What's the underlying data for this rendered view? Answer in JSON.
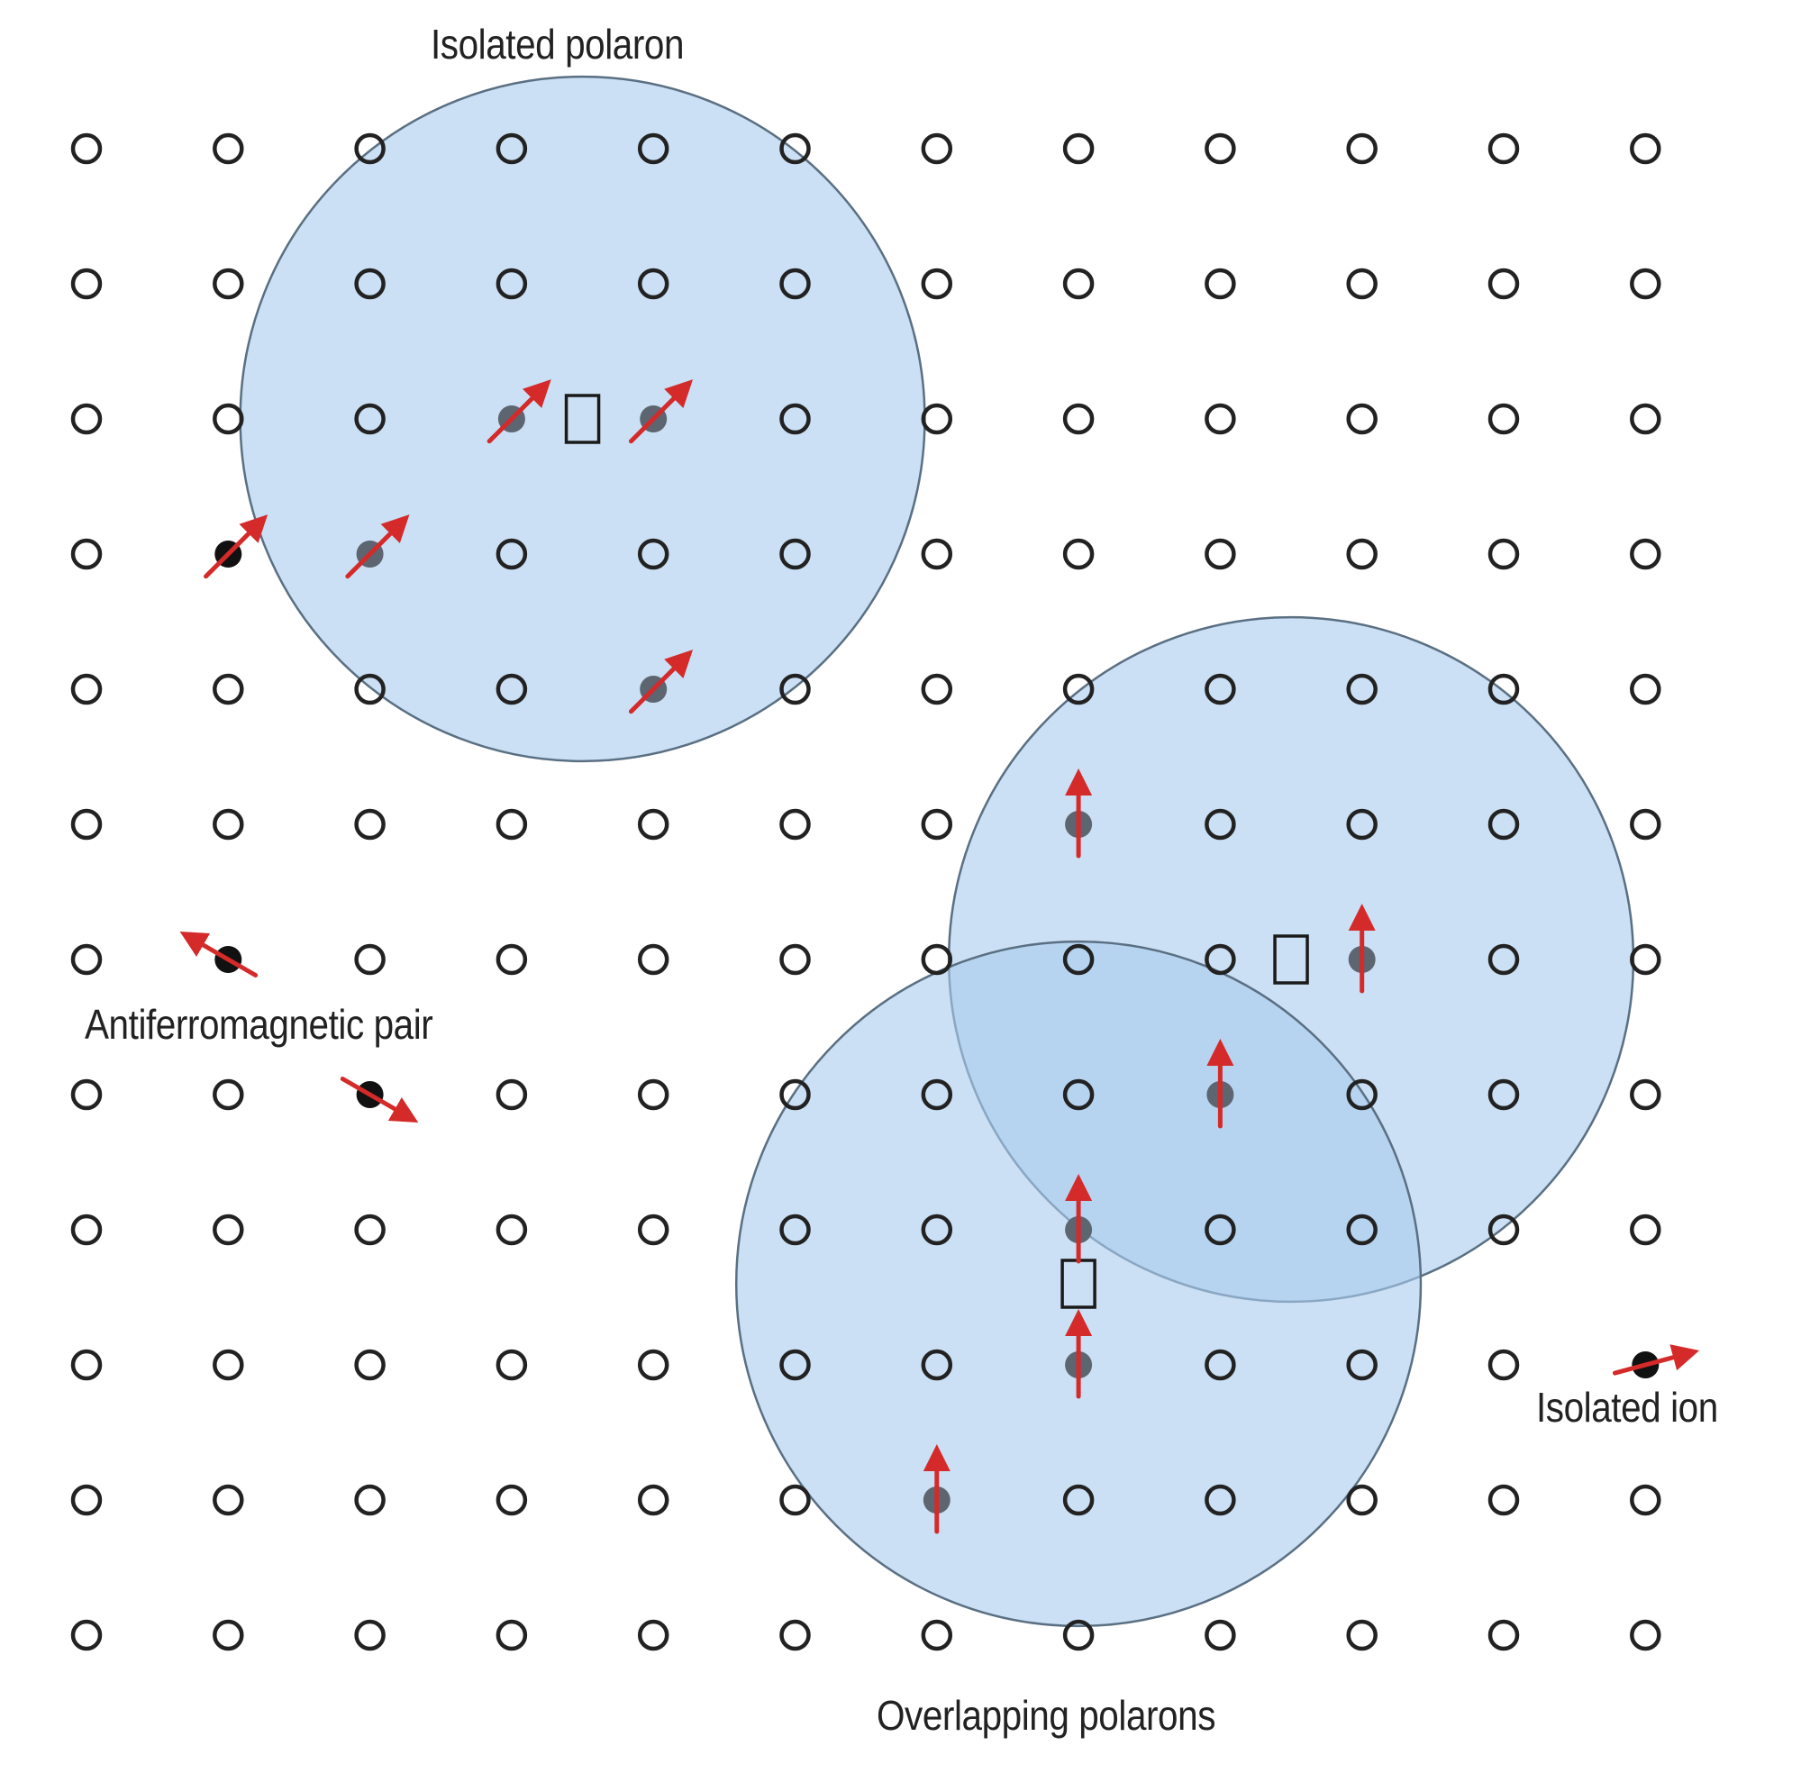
{
  "labels": {
    "isolated_polaron": "Isolated polaron",
    "antiferromagnetic_pair": "Antiferromagnetic pair",
    "isolated_ion": "Isolated ion",
    "overlapping_polarons": "Overlapping polarons"
  },
  "lattice": {
    "columns": 12,
    "rows": 12
  },
  "polarons": [
    {
      "id": "isolated-polaron",
      "center": [
        3.5,
        2
      ],
      "radius": 2.3
    },
    {
      "id": "overlapping-polaron-upper",
      "center": [
        8.5,
        6
      ],
      "radius": 2.3
    },
    {
      "id": "overlapping-polaron-lower",
      "center": [
        7.0,
        8.4
      ],
      "radius": 2.3
    }
  ],
  "carriers": [
    {
      "id": "isolated-polaron-carrier",
      "site": [
        3.5,
        2
      ]
    },
    {
      "id": "upper-polaron-carrier",
      "site": [
        8.5,
        6
      ]
    },
    {
      "id": "lower-polaron-carrier",
      "site": [
        7.0,
        8.4
      ]
    }
  ],
  "spins": [
    {
      "id": "isolated-polaron-spin-1",
      "site": [
        3,
        2
      ],
      "angle": 45,
      "in_polaron": true
    },
    {
      "id": "isolated-polaron-spin-2",
      "site": [
        4,
        2
      ],
      "angle": 45,
      "in_polaron": true
    },
    {
      "id": "isolated-polaron-spin-3",
      "site": [
        2,
        3
      ],
      "angle": 45,
      "in_polaron": true
    },
    {
      "id": "isolated-polaron-spin-4",
      "site": [
        4,
        4
      ],
      "angle": 45,
      "in_polaron": true
    },
    {
      "id": "free-spin-near-polaron",
      "site": [
        1,
        3
      ],
      "angle": 45,
      "in_polaron": false
    },
    {
      "id": "antiferromagnetic-pair-spin-1",
      "site": [
        1,
        6
      ],
      "angle": 150,
      "in_polaron": false
    },
    {
      "id": "antiferromagnetic-pair-spin-2",
      "site": [
        2,
        7
      ],
      "angle": -30,
      "in_polaron": false
    },
    {
      "id": "isolated-ion-spin",
      "site": [
        11,
        9
      ],
      "angle": 15,
      "in_polaron": false
    },
    {
      "id": "overlap-spin-1",
      "site": [
        7,
        5
      ],
      "angle": 90,
      "in_polaron": true
    },
    {
      "id": "overlap-spin-2",
      "site": [
        9,
        6
      ],
      "angle": 90,
      "in_polaron": true
    },
    {
      "id": "overlap-spin-3",
      "site": [
        8,
        7
      ],
      "angle": 90,
      "in_polaron": true
    },
    {
      "id": "overlap-spin-4",
      "site": [
        7,
        8
      ],
      "angle": 90,
      "in_polaron": true
    },
    {
      "id": "overlap-spin-5",
      "site": [
        7,
        9
      ],
      "angle": 90,
      "in_polaron": true
    },
    {
      "id": "overlap-spin-6",
      "site": [
        6,
        10
      ],
      "angle": 90,
      "in_polaron": true
    }
  ],
  "colors": {
    "background": "#ffffff",
    "lattice_site": "#222222",
    "polaron_fill": "#a9cbec",
    "polaron_stroke": "#5a6f82",
    "spin_dot_in_polaron": "#5c6570",
    "spin_dot_free": "#111111",
    "spin_arrow": "#d42a2a",
    "label_text": "#222222"
  }
}
